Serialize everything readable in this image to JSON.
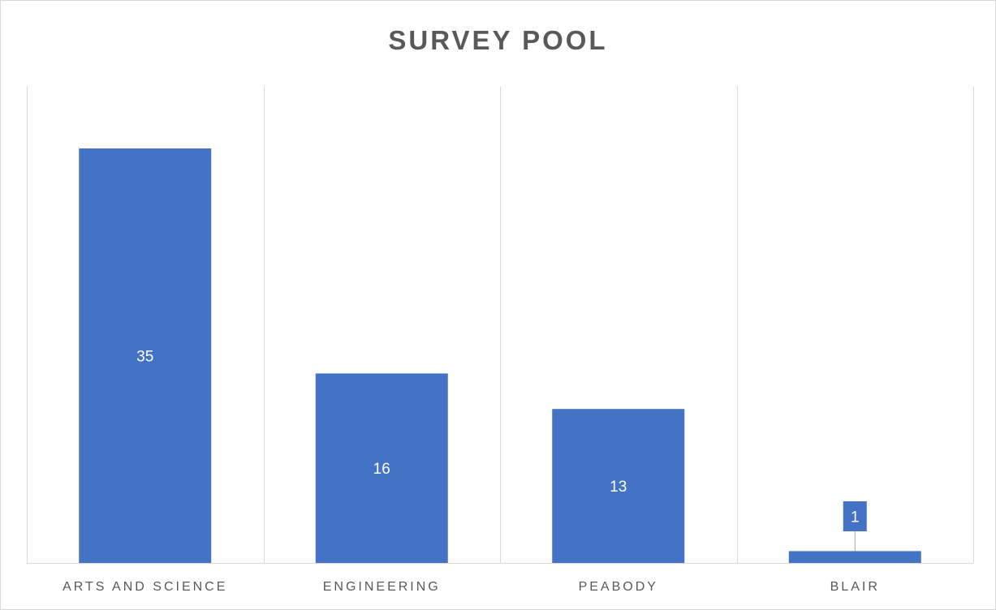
{
  "chart_data": {
    "type": "bar",
    "title": "SURVEY POOL",
    "categories": [
      "ARTS AND SCIENCE",
      "ENGINEERING",
      "PEABODY",
      "BLAIR"
    ],
    "values": [
      35,
      16,
      13,
      1
    ],
    "data_labels": [
      "35",
      "16",
      "13",
      "1"
    ],
    "ylim": [
      0,
      40
    ],
    "grid": "vertical category separators",
    "legend": "none",
    "y_axis_visible": false
  },
  "colors": {
    "bar": "#4472c4",
    "axis": "#d9d9d9",
    "text": "#595959",
    "label_on_bar": "#ffffff"
  }
}
